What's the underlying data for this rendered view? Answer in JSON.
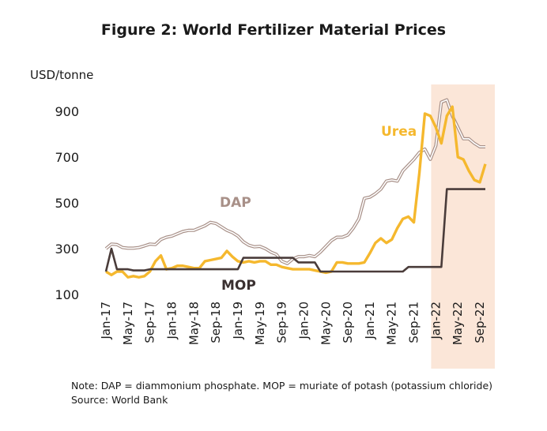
{
  "chart_data": {
    "type": "line",
    "title": "Figure 2: World Fertilizer Material Prices",
    "ylabel": "USD/tonne",
    "ylim": [
      100,
      1000
    ],
    "yticks": [
      100,
      300,
      500,
      700,
      900
    ],
    "x_tick_labels": [
      "Jan-17",
      "May-17",
      "Sep-17",
      "Jan-18",
      "May-18",
      "Sep-18",
      "Jan-19",
      "May-19",
      "Sep-19",
      "Jan-20",
      "May-20",
      "Sep-20",
      "Jan-21",
      "May-21",
      "Sep-21",
      "Jan-22",
      "May-22",
      "Sep-22"
    ],
    "x_start": "Jan-17",
    "x_end": "Oct-22",
    "highlight": {
      "from": "Jan-22",
      "to": "Oct-22",
      "color": "#fbe6d8"
    },
    "grid": false,
    "series": [
      {
        "name": "DAP",
        "color": "#a89088",
        "style": "double",
        "values": [
          300,
          320,
          318,
          305,
          302,
          302,
          305,
          312,
          320,
          318,
          340,
          350,
          355,
          365,
          375,
          380,
          380,
          390,
          400,
          415,
          410,
          395,
          380,
          370,
          355,
          330,
          315,
          308,
          310,
          300,
          285,
          275,
          245,
          235,
          255,
          265,
          265,
          270,
          265,
          285,
          310,
          335,
          350,
          350,
          360,
          390,
          430,
          520,
          525,
          540,
          560,
          595,
          600,
          595,
          640,
          665,
          690,
          720,
          735,
          690,
          750,
          940,
          950,
          880,
          830,
          780,
          780,
          760,
          745,
          745
        ],
        "label_text": "DAP",
        "label_color": "#a89088"
      },
      {
        "name": "Urea",
        "color": "#f5b82e",
        "values": [
          200,
          185,
          200,
          200,
          175,
          180,
          175,
          180,
          200,
          245,
          270,
          210,
          215,
          225,
          225,
          220,
          215,
          215,
          245,
          250,
          255,
          260,
          290,
          265,
          245,
          240,
          245,
          240,
          245,
          245,
          230,
          230,
          220,
          215,
          210,
          210,
          210,
          210,
          205,
          200,
          195,
          200,
          240,
          240,
          235,
          235,
          235,
          240,
          280,
          325,
          345,
          325,
          340,
          390,
          430,
          440,
          415,
          630,
          890,
          880,
          830,
          760,
          880,
          920,
          700,
          690,
          640,
          600,
          590,
          670
        ],
        "label_text": "Urea",
        "label_color": "#f5b82e"
      },
      {
        "name": "MOP",
        "color": "#4a3c3a",
        "values": [
          200,
          300,
          210,
          210,
          210,
          205,
          205,
          205,
          210,
          210,
          210,
          210,
          210,
          210,
          210,
          210,
          210,
          210,
          210,
          210,
          210,
          210,
          210,
          210,
          210,
          260,
          260,
          260,
          260,
          260,
          260,
          260,
          260,
          260,
          260,
          240,
          240,
          240,
          240,
          200,
          200,
          200,
          200,
          200,
          200,
          200,
          200,
          200,
          200,
          200,
          200,
          200,
          200,
          200,
          200,
          220,
          220,
          220,
          220,
          220,
          220,
          220,
          560,
          560,
          560,
          560,
          560,
          560,
          560,
          560
        ],
        "label_text": "MOP",
        "label_color": "#3a3030"
      }
    ]
  },
  "notes": {
    "line1": "Note: DAP = diammonium phosphate. MOP = muriate of potash (potassium chloride)",
    "line2": "Source: World Bank"
  }
}
